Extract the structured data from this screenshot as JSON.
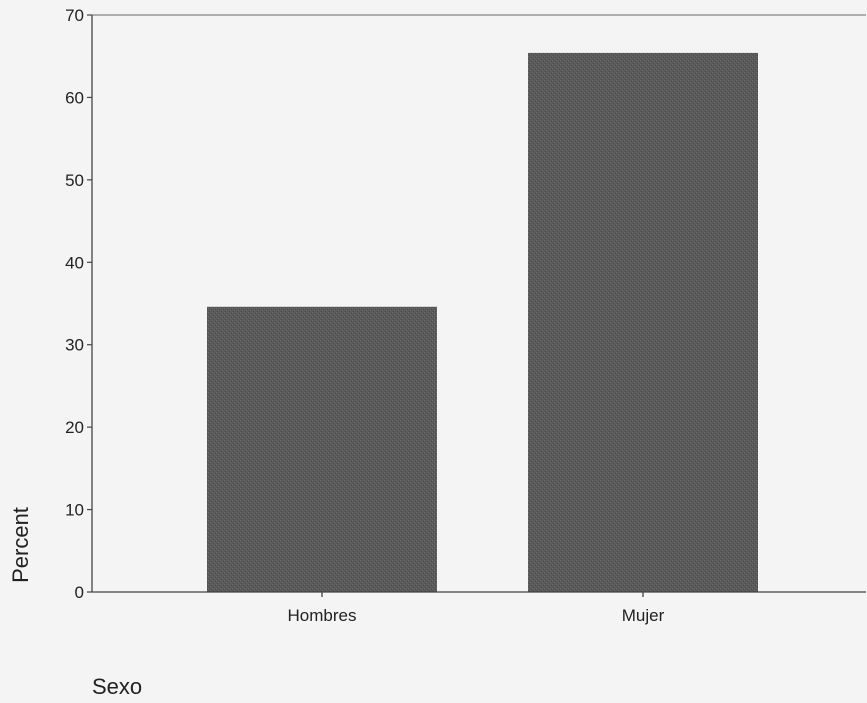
{
  "chart_data": {
    "type": "bar",
    "categories": [
      "Hombres",
      "Mujer"
    ],
    "values": [
      34.6,
      65.4
    ],
    "xlabel": "Sexo",
    "ylabel": "Percent",
    "ylim": [
      0,
      70
    ],
    "yticks": [
      0,
      10,
      20,
      30,
      40,
      50,
      60,
      70
    ],
    "grid": false,
    "bar_color": "#565656"
  }
}
